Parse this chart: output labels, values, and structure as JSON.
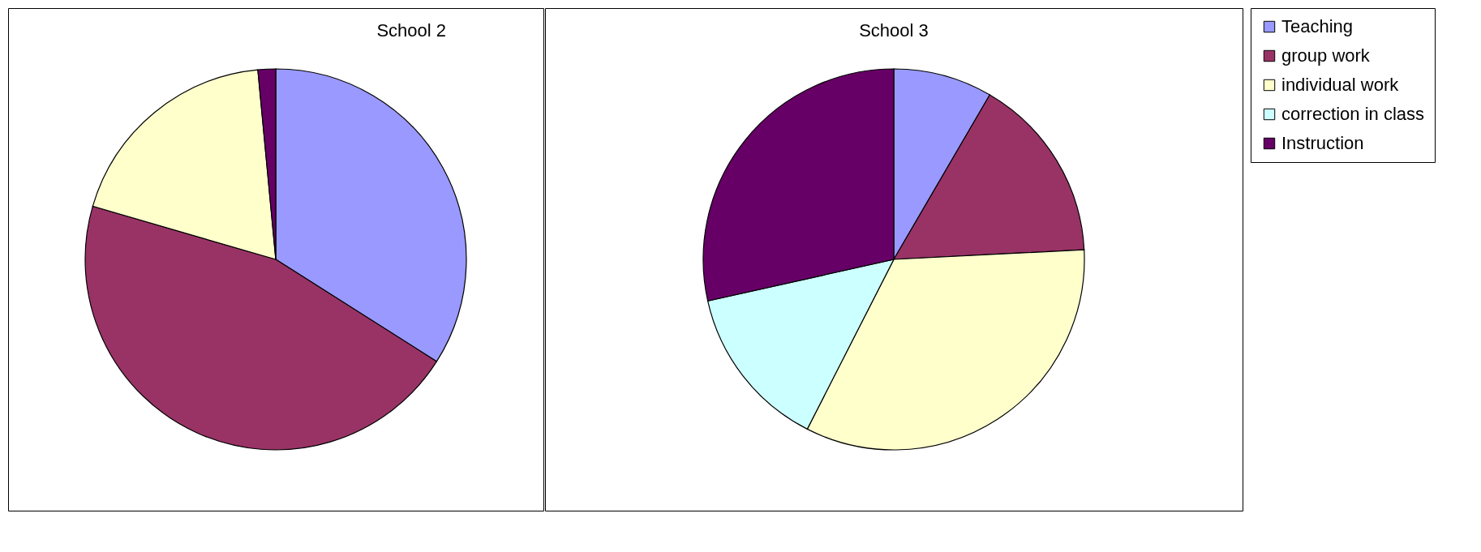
{
  "chart_data": [
    {
      "type": "pie",
      "title": "School 2",
      "categories": [
        null,
        null,
        null,
        null
      ],
      "values": [
        34,
        45.5,
        19,
        1.5
      ],
      "colors": [
        "#9999ff",
        "#993366",
        "#ffffcc",
        "#660066"
      ],
      "legend": false
    },
    {
      "type": "pie",
      "title": "School 3",
      "categories": [
        "Teaching",
        "group work",
        "individual work",
        "correction in class",
        "Instruction"
      ],
      "values": [
        8.4,
        15.8,
        33.3,
        14,
        28.5
      ],
      "colors": [
        "#9999ff",
        "#993366",
        "#ffffcc",
        "#ccffff",
        "#660066"
      ],
      "legend": "right"
    }
  ]
}
